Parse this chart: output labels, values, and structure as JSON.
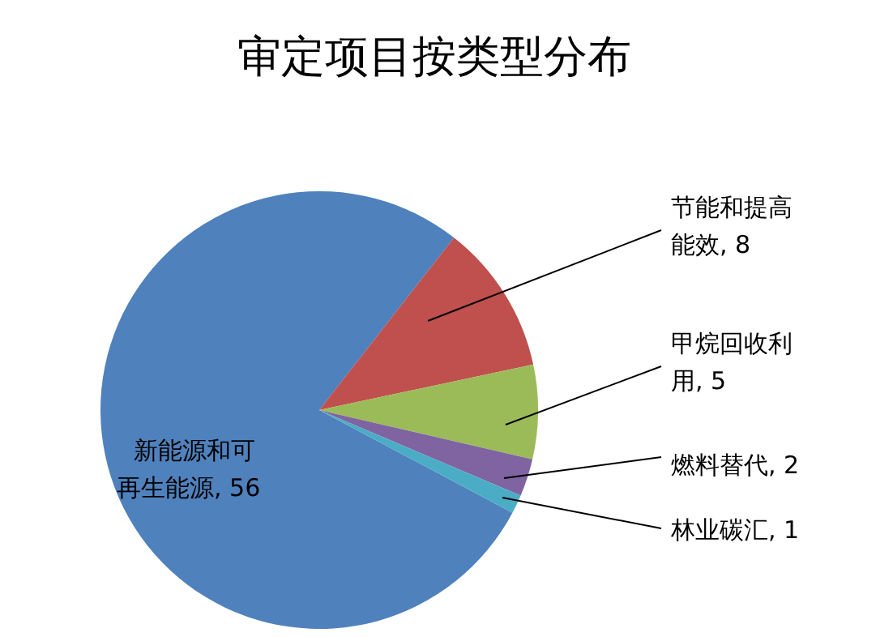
{
  "chart_data": {
    "type": "pie",
    "title": "审定项目按类型分布",
    "categories": [
      "新能源和可再生能源",
      "节能和提高能效",
      "甲烷回收利用",
      "燃料替代",
      "林业碳汇"
    ],
    "values": [
      56,
      8,
      5,
      2,
      1
    ],
    "colors": [
      "#4f81bd",
      "#c0504d",
      "#9bbb59",
      "#8064a2",
      "#4bacc6"
    ],
    "value_labels": [
      ", 56",
      ", 8",
      ", 5",
      ", 2",
      ", 1"
    ]
  }
}
